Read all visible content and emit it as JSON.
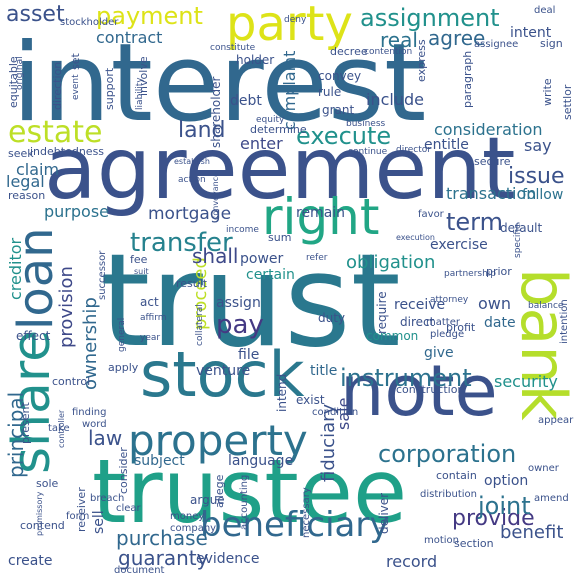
{
  "words": [
    {
      "text": "interest",
      "color": "#31688e"
    },
    {
      "text": "trust",
      "color": "#2a788e"
    },
    {
      "text": "agreement",
      "color": "#3b528b"
    },
    {
      "text": "trustee",
      "color": "#1fa088"
    },
    {
      "text": "stock",
      "color": "#2a788e"
    },
    {
      "text": "note",
      "color": "#3b528b"
    },
    {
      "text": "party",
      "color": "#dde318"
    },
    {
      "text": "bank",
      "color": "#b5de2b"
    },
    {
      "text": "right",
      "color": "#21a685"
    },
    {
      "text": "share",
      "color": "#21918c"
    },
    {
      "text": "loan",
      "color": "#31688e"
    },
    {
      "text": "property",
      "color": "#2c728e"
    },
    {
      "text": "beneficiary",
      "color": "#31688e"
    },
    {
      "text": "corporation",
      "color": "#2c728e"
    },
    {
      "text": "instrument",
      "color": "#2c728e"
    },
    {
      "text": "provide",
      "color": "#443983"
    },
    {
      "text": "execute",
      "color": "#21918c"
    },
    {
      "text": "transfer",
      "color": "#26828e"
    },
    {
      "text": "estate",
      "color": "#bddf26"
    },
    {
      "text": "asset",
      "color": "#3b528b"
    },
    {
      "text": "payment",
      "color": "#dde318"
    },
    {
      "text": "assignment",
      "color": "#21918c"
    },
    {
      "text": "land",
      "color": "#3b528b"
    },
    {
      "text": "pay",
      "color": "#443983"
    },
    {
      "text": "principal",
      "color": "#31688e"
    },
    {
      "text": "purchase",
      "color": "#31688e"
    },
    {
      "text": "guaranty",
      "color": "#3b528b"
    },
    {
      "text": "term",
      "color": "#3b528b"
    },
    {
      "text": "issue",
      "color": "#3b528b"
    },
    {
      "text": "joint",
      "color": "#2c728e"
    },
    {
      "text": "proceed",
      "color": "#bddf26"
    },
    {
      "text": "shall",
      "color": "#3e4989"
    },
    {
      "text": "mortgage",
      "color": "#3b528b"
    },
    {
      "text": "transaction",
      "color": "#2c728e"
    },
    {
      "text": "consideration",
      "color": "#2c728e"
    },
    {
      "text": "security",
      "color": "#21918c"
    },
    {
      "text": "obligation",
      "color": "#21918c"
    },
    {
      "text": "ownership",
      "color": "#31688e"
    },
    {
      "text": "provision",
      "color": "#3e4989"
    },
    {
      "text": "fiduciary",
      "color": "#3b528b"
    },
    {
      "text": "law",
      "color": "#3b528b"
    },
    {
      "text": "sale",
      "color": "#3e4989"
    },
    {
      "text": "creditor",
      "color": "#21918c"
    },
    {
      "text": "real",
      "color": "#2c728e"
    },
    {
      "text": "agree",
      "color": "#31688e"
    },
    {
      "text": "contract",
      "color": "#31688e"
    },
    {
      "text": "complaint",
      "color": "#31688e"
    },
    {
      "text": "include",
      "color": "#3b528b"
    },
    {
      "text": "enter",
      "color": "#3e4989"
    },
    {
      "text": "debt",
      "color": "#3b528b"
    },
    {
      "text": "purpose",
      "color": "#2c728e"
    },
    {
      "text": "claim",
      "color": "#31688e"
    },
    {
      "text": "legal",
      "color": "#31688e"
    },
    {
      "text": "language",
      "color": "#3b528b"
    },
    {
      "text": "subject",
      "color": "#31688e"
    },
    {
      "text": "evidence",
      "color": "#3b528b"
    },
    {
      "text": "benefit",
      "color": "#3b528b"
    },
    {
      "text": "option",
      "color": "#3b528b"
    },
    {
      "text": "record",
      "color": "#3b528b"
    },
    {
      "text": "receive",
      "color": "#3b528b"
    },
    {
      "text": "own",
      "color": "#3b528b"
    },
    {
      "text": "date",
      "color": "#31688e"
    },
    {
      "text": "give",
      "color": "#31688e"
    },
    {
      "text": "assign",
      "color": "#3b528b"
    },
    {
      "text": "certain",
      "color": "#21918c"
    },
    {
      "text": "power",
      "color": "#3b528b"
    },
    {
      "text": "venture",
      "color": "#3b528b"
    },
    {
      "text": "title",
      "color": "#31688e"
    },
    {
      "text": "file",
      "color": "#3b528b"
    },
    {
      "text": "exercise",
      "color": "#3b528b"
    },
    {
      "text": "remain",
      "color": "#3b528b"
    },
    {
      "text": "say",
      "color": "#3b528b"
    },
    {
      "text": "entitle",
      "color": "#3b528b"
    },
    {
      "text": "convey",
      "color": "#3b528b"
    },
    {
      "text": "rule",
      "color": "#3b528b"
    },
    {
      "text": "grant",
      "color": "#3b528b"
    },
    {
      "text": "follow",
      "color": "#2c728e"
    },
    {
      "text": "default",
      "color": "#3b528b"
    },
    {
      "text": "sell",
      "color": "#3b528b"
    },
    {
      "text": "create",
      "color": "#3b528b"
    },
    {
      "text": "deliver",
      "color": "#3b528b"
    },
    {
      "text": "holder",
      "color": "#3b528b"
    },
    {
      "text": "shareholder",
      "color": "#3b528b"
    },
    {
      "text": "duty",
      "color": "#3b528b"
    },
    {
      "text": "act",
      "color": "#3b528b"
    },
    {
      "text": "effect",
      "color": "#3b528b"
    },
    {
      "text": "require",
      "color": "#3b528b"
    },
    {
      "text": "direct",
      "color": "#3b528b"
    },
    {
      "text": "common",
      "color": "#21918c"
    },
    {
      "text": "intend",
      "color": "#3b528b"
    },
    {
      "text": "exist",
      "color": "#3b528b"
    },
    {
      "text": "contain",
      "color": "#3b528b"
    },
    {
      "text": "section",
      "color": "#3b528b"
    },
    {
      "text": "argue",
      "color": "#3b528b"
    },
    {
      "text": "consider",
      "color": "#3b528b"
    },
    {
      "text": "receiver",
      "color": "#3b528b"
    },
    {
      "text": "support",
      "color": "#3b528b"
    },
    {
      "text": "involve",
      "color": "#3b528b"
    },
    {
      "text": "set",
      "color": "#3b528b"
    },
    {
      "text": "direction",
      "color": "#3b528b"
    },
    {
      "text": "equitable",
      "color": "#3b528b"
    },
    {
      "text": "secure",
      "color": "#3b528b"
    },
    {
      "text": "seek",
      "color": "#3b528b"
    },
    {
      "text": "reason",
      "color": "#3b528b"
    },
    {
      "text": "indebtedness",
      "color": "#3b528b"
    },
    {
      "text": "determine",
      "color": "#3b528b"
    },
    {
      "text": "control",
      "color": "#3b528b"
    },
    {
      "text": "apply",
      "color": "#3b528b"
    },
    {
      "text": "present",
      "color": "#3b528b"
    },
    {
      "text": "sole",
      "color": "#3b528b"
    },
    {
      "text": "contend",
      "color": "#3b528b"
    },
    {
      "text": "express",
      "color": "#3b528b"
    },
    {
      "text": "paragraph",
      "color": "#3b528b"
    },
    {
      "text": "write",
      "color": "#3b528b"
    },
    {
      "text": "settlor",
      "color": "#3b528b"
    },
    {
      "text": "prior",
      "color": "#3b528b"
    },
    {
      "text": "result",
      "color": "#3b528b"
    },
    {
      "text": "fee",
      "color": "#3b528b"
    },
    {
      "text": "sum",
      "color": "#3b528b"
    },
    {
      "text": "successor",
      "color": "#3b528b"
    },
    {
      "text": "profit",
      "color": "#3b528b"
    },
    {
      "text": "matter",
      "color": "#3b528b"
    },
    {
      "text": "pledge",
      "color": "#3b528b"
    },
    {
      "text": "intention",
      "color": "#3b528b"
    },
    {
      "text": "construction",
      "color": "#3b528b"
    },
    {
      "text": "condition",
      "color": "#3b528b"
    },
    {
      "text": "necessary",
      "color": "#3b528b"
    },
    {
      "text": "accounting",
      "color": "#3b528b"
    },
    {
      "text": "allege",
      "color": "#3b528b"
    },
    {
      "text": "money",
      "color": "#3b528b"
    },
    {
      "text": "company",
      "color": "#3b528b"
    },
    {
      "text": "document",
      "color": "#3b528b"
    },
    {
      "text": "motion",
      "color": "#3b528b"
    },
    {
      "text": "breach",
      "color": "#3b528b"
    },
    {
      "text": "clear",
      "color": "#3b528b"
    },
    {
      "text": "finding",
      "color": "#3b528b"
    },
    {
      "text": "word",
      "color": "#3b528b"
    },
    {
      "text": "take",
      "color": "#3b528b"
    },
    {
      "text": "form",
      "color": "#3b528b"
    },
    {
      "text": "stockholder",
      "color": "#3b528b"
    },
    {
      "text": "deal",
      "color": "#3b528b"
    },
    {
      "text": "intent",
      "color": "#3b528b"
    },
    {
      "text": "sign",
      "color": "#3b528b"
    },
    {
      "text": "decree",
      "color": "#3b528b"
    },
    {
      "text": "contention",
      "color": "#3b528b"
    },
    {
      "text": "assignee",
      "color": "#3b528b"
    },
    {
      "text": "equity",
      "color": "#3b528b"
    },
    {
      "text": "business",
      "color": "#3b528b"
    },
    {
      "text": "continue",
      "color": "#3b528b"
    },
    {
      "text": "director",
      "color": "#3b528b"
    },
    {
      "text": "income",
      "color": "#3b528b"
    },
    {
      "text": "partnership",
      "color": "#3b528b"
    },
    {
      "text": "collateral",
      "color": "#3b528b"
    },
    {
      "text": "year",
      "color": "#3b528b"
    },
    {
      "text": "affirm",
      "color": "#3b528b"
    },
    {
      "text": "general",
      "color": "#3b528b"
    },
    {
      "text": "balance",
      "color": "#3b528b"
    },
    {
      "text": "attorney",
      "color": "#3b528b"
    },
    {
      "text": "specific",
      "color": "#3b528b"
    },
    {
      "text": "appear",
      "color": "#3b528b"
    },
    {
      "text": "owner",
      "color": "#3b528b"
    },
    {
      "text": "amend",
      "color": "#3b528b"
    },
    {
      "text": "distribution",
      "color": "#3b528b"
    },
    {
      "text": "event",
      "color": "#3b528b"
    },
    {
      "text": "original",
      "color": "#3b528b"
    },
    {
      "text": "liability",
      "color": "#3b528b"
    },
    {
      "text": "constitute",
      "color": "#3b528b"
    },
    {
      "text": "establish",
      "color": "#3b528b"
    },
    {
      "text": "conveyance",
      "color": "#3b528b"
    },
    {
      "text": "action",
      "color": "#3b528b"
    },
    {
      "text": "favor",
      "color": "#3b528b"
    },
    {
      "text": "execution",
      "color": "#3b528b"
    },
    {
      "text": "refer",
      "color": "#3b528b"
    },
    {
      "text": "suit",
      "color": "#3b528b"
    },
    {
      "text": "promissory",
      "color": "#3b528b"
    },
    {
      "text": "controller",
      "color": "#3b528b"
    },
    {
      "text": "deny",
      "color": "#3b528b"
    }
  ]
}
